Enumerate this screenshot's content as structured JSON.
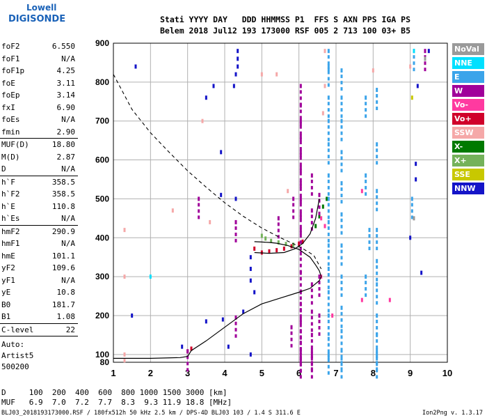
{
  "logo": {
    "line1": "Lowell",
    "line2": "DIGISONDE"
  },
  "header": {
    "row1": "Stati YYYY DAY   DDD HHMMSS P1  FFS S AXN PPS IGA PS",
    "row2": "Belem 2018 Jul12 193 173000 RSF 005 2 713 100 03+ B5"
  },
  "params": [
    {
      "label": "foF2",
      "value": "6.550"
    },
    {
      "label": "foF1",
      "value": "N/A"
    },
    {
      "label": "foF1p",
      "value": "4.25"
    },
    {
      "label": "foE",
      "value": "3.11"
    },
    {
      "label": "foEp",
      "value": "3.14"
    },
    {
      "label": "fxI",
      "value": "6.90"
    },
    {
      "label": "foEs",
      "value": "N/A"
    },
    {
      "label": "fmin",
      "value": "2.90"
    },
    {
      "sep": true
    },
    {
      "label": "MUF(D)",
      "value": "18.80"
    },
    {
      "label": "M(D)",
      "value": "2.87"
    },
    {
      "label": "D",
      "value": "N/A"
    },
    {
      "sep": true
    },
    {
      "label": "h`F",
      "value": "358.5"
    },
    {
      "label": "h`F2",
      "value": "358.5"
    },
    {
      "label": "h`E",
      "value": "110.8"
    },
    {
      "label": "h`Es",
      "value": "N/A"
    },
    {
      "sep": true
    },
    {
      "label": "hmF2",
      "value": "290.9"
    },
    {
      "label": "hmF1",
      "value": "N/A"
    },
    {
      "label": "hmE",
      "value": "101.1"
    },
    {
      "label": "yF2",
      "value": "109.6"
    },
    {
      "label": "yF1",
      "value": "N/A"
    },
    {
      "label": "yE",
      "value": "10.8"
    },
    {
      "label": "B0",
      "value": "181.7"
    },
    {
      "label": "B1",
      "value": "1.08"
    },
    {
      "sep": true
    },
    {
      "label": "C-level",
      "value": "22"
    },
    {
      "sep": true
    }
  ],
  "artist": {
    "line1": "Auto:",
    "line2": "Artist5",
    "line3": "500200"
  },
  "legend": [
    {
      "label": "NoVal",
      "color": "#9a9a9a"
    },
    {
      "label": "NNE",
      "color": "#00e0ff"
    },
    {
      "label": "E",
      "color": "#3ba4ea"
    },
    {
      "label": "W",
      "color": "#a0009a"
    },
    {
      "label": "Vo-",
      "color": "#ff3aa0"
    },
    {
      "label": "Vo+",
      "color": "#d0002a"
    },
    {
      "label": "SSW",
      "color": "#f5a8a8"
    },
    {
      "label": "X-",
      "color": "#007a00"
    },
    {
      "label": "X+",
      "color": "#74b25a"
    },
    {
      "label": "SSE",
      "color": "#c8c800"
    },
    {
      "label": "NNW",
      "color": "#1414c8"
    }
  ],
  "footer": {
    "line1": "D     100  200  400  600  800 1000 1500 3000 [km]",
    "line2": "MUF   6.9  7.0  7.2  7.7  8.3  9.3 11.9 18.8 [MHz]",
    "line3": "BLJ03_2018193173000.RSF / 180fx512h 50 kHz 2.5 km / DPS-4D BLJ03 103 / 1.4 S 311.6 E",
    "version": "Ion2Png v. 1.3.17"
  },
  "chart_data": {
    "type": "scatter",
    "xlim": [
      1,
      10
    ],
    "ylim": [
      80,
      900
    ],
    "x_ticks": [
      "1",
      "2",
      "3",
      "4",
      "5",
      "6",
      "7",
      "8",
      "9",
      "10"
    ],
    "y_ticks": [
      "80",
      "100",
      "200",
      "300",
      "400",
      "500",
      "600",
      "700",
      "800",
      "900"
    ],
    "grid": true,
    "traces": {
      "ordinary_O": [
        [
          1.0,
          90
        ],
        [
          2.0,
          90
        ],
        [
          2.8,
          92
        ],
        [
          3.0,
          95
        ],
        [
          3.1,
          110
        ],
        [
          3.5,
          135
        ],
        [
          4.0,
          170
        ],
        [
          4.5,
          205
        ],
        [
          5.0,
          230
        ],
        [
          5.5,
          245
        ],
        [
          6.0,
          260
        ],
        [
          6.3,
          270
        ],
        [
          6.55,
          290
        ],
        [
          6.6,
          300
        ],
        [
          6.55,
          315
        ],
        [
          6.45,
          330
        ],
        [
          6.3,
          350
        ],
        [
          6.0,
          370
        ],
        [
          5.7,
          380
        ],
        [
          5.4,
          386
        ],
        [
          5.2,
          388
        ],
        [
          5.0,
          389
        ],
        [
          4.8,
          390
        ]
      ],
      "ordinary_profile_upper": [
        [
          4.8,
          362
        ],
        [
          5.2,
          360
        ],
        [
          5.6,
          362
        ],
        [
          5.9,
          372
        ],
        [
          6.1,
          385
        ],
        [
          6.3,
          410
        ],
        [
          6.45,
          450
        ],
        [
          6.55,
          500
        ]
      ],
      "model_dashed": [
        [
          1.0,
          820
        ],
        [
          1.5,
          730
        ],
        [
          2.0,
          670
        ],
        [
          2.5,
          620
        ],
        [
          3.0,
          572
        ],
        [
          3.5,
          530
        ],
        [
          4.0,
          490
        ],
        [
          4.5,
          455
        ],
        [
          5.0,
          425
        ],
        [
          5.5,
          400
        ],
        [
          6.0,
          378
        ],
        [
          6.4,
          355
        ],
        [
          6.6,
          320
        ]
      ]
    },
    "echo_groups": [
      {
        "class": "Vo+",
        "points": [
          [
            5.2,
            365
          ],
          [
            5.4,
            368
          ],
          [
            5.6,
            372
          ],
          [
            5.8,
            378
          ],
          [
            6.0,
            385
          ],
          [
            6.1,
            390
          ],
          [
            4.8,
            372
          ],
          [
            5.0,
            362
          ],
          [
            3.0,
            108
          ],
          [
            3.1,
            115
          ]
        ]
      },
      {
        "class": "X+",
        "points": [
          [
            5.0,
            405
          ],
          [
            5.1,
            398
          ],
          [
            5.25,
            392
          ],
          [
            5.45,
            388
          ],
          [
            5.65,
            384
          ],
          [
            5.85,
            382
          ]
        ]
      },
      {
        "class": "X-",
        "points": [
          [
            6.45,
            430
          ],
          [
            6.55,
            455
          ],
          [
            6.65,
            480
          ],
          [
            6.75,
            500
          ]
        ]
      },
      {
        "class": "E",
        "points": [
          [
            6.8,
            880
          ],
          [
            6.8,
            840
          ],
          [
            6.8,
            760
          ],
          [
            6.8,
            700
          ],
          [
            6.8,
            640
          ],
          [
            6.8,
            560
          ],
          [
            6.8,
            500
          ],
          [
            6.8,
            440
          ],
          [
            6.8,
            380
          ],
          [
            6.8,
            320
          ],
          [
            6.8,
            260
          ],
          [
            6.8,
            200
          ],
          [
            6.8,
            140
          ],
          [
            6.8,
            100
          ],
          [
            7.15,
            830
          ],
          [
            7.15,
            760
          ],
          [
            7.15,
            700
          ],
          [
            7.15,
            620
          ],
          [
            7.15,
            540
          ],
          [
            7.15,
            460
          ],
          [
            7.15,
            380
          ],
          [
            7.15,
            300
          ],
          [
            7.15,
            220
          ],
          [
            7.15,
            160
          ],
          [
            7.15,
            110
          ],
          [
            7.15,
            90
          ],
          [
            8.1,
            780
          ],
          [
            8.1,
            640
          ],
          [
            8.1,
            520
          ],
          [
            8.1,
            420
          ],
          [
            8.1,
            340
          ],
          [
            8.1,
            280
          ],
          [
            8.1,
            200
          ],
          [
            8.1,
            150
          ],
          [
            8.1,
            110
          ],
          [
            8.1,
            90
          ],
          [
            7.8,
            760
          ],
          [
            7.8,
            560
          ],
          [
            7.8,
            300
          ],
          [
            7.9,
            420
          ],
          [
            9.1,
            880
          ],
          [
            9.05,
            500
          ]
        ]
      },
      {
        "class": "W",
        "points": [
          [
            6.05,
            790
          ],
          [
            6.05,
            740
          ],
          [
            6.05,
            700
          ],
          [
            6.05,
            660
          ],
          [
            6.05,
            620
          ],
          [
            6.05,
            580
          ],
          [
            6.05,
            540
          ],
          [
            6.05,
            500
          ],
          [
            6.05,
            460
          ],
          [
            6.05,
            420
          ],
          [
            6.05,
            360
          ],
          [
            6.05,
            310
          ],
          [
            6.05,
            260
          ],
          [
            6.05,
            230
          ],
          [
            6.05,
            190
          ],
          [
            6.05,
            160
          ],
          [
            6.05,
            130
          ],
          [
            6.05,
            105
          ],
          [
            6.05,
            90
          ],
          [
            6.35,
            560
          ],
          [
            6.35,
            470
          ],
          [
            6.35,
            280
          ],
          [
            6.35,
            210
          ],
          [
            6.35,
            150
          ],
          [
            6.35,
            110
          ],
          [
            6.35,
            90
          ],
          [
            6.55,
            510
          ],
          [
            6.55,
            300
          ],
          [
            6.55,
            200
          ],
          [
            5.85,
            500
          ],
          [
            5.8,
            170
          ],
          [
            5.45,
            450
          ],
          [
            4.3,
            440
          ],
          [
            4.3,
            195
          ],
          [
            3.3,
            500
          ],
          [
            3.0,
            108
          ],
          [
            9.4,
            880
          ]
        ]
      },
      {
        "class": "Vo-",
        "points": [
          [
            6.6,
            450
          ],
          [
            6.7,
            430
          ],
          [
            6.6,
            300
          ],
          [
            7.7,
            520
          ],
          [
            7.7,
            240
          ],
          [
            8.45,
            240
          ],
          [
            6.9,
            200
          ]
        ]
      },
      {
        "class": "NNW",
        "points": [
          [
            4.35,
            880
          ],
          [
            4.35,
            860
          ],
          [
            4.35,
            840
          ],
          [
            4.3,
            820
          ],
          [
            4.25,
            790
          ],
          [
            3.7,
            790
          ],
          [
            3.5,
            760
          ],
          [
            3.9,
            620
          ],
          [
            4.3,
            500
          ],
          [
            3.9,
            510
          ],
          [
            4.7,
            350
          ],
          [
            4.7,
            320
          ],
          [
            4.7,
            290
          ],
          [
            4.8,
            260
          ],
          [
            4.5,
            210
          ],
          [
            3.95,
            190
          ],
          [
            3.5,
            185
          ],
          [
            4.1,
            120
          ],
          [
            2.85,
            120
          ],
          [
            4.7,
            100
          ],
          [
            1.6,
            840
          ],
          [
            1.5,
            200
          ],
          [
            9.15,
            590
          ],
          [
            9.15,
            550
          ],
          [
            9.2,
            790
          ],
          [
            9.5,
            880
          ],
          [
            9.0,
            400
          ],
          [
            9.3,
            310
          ]
        ]
      },
      {
        "class": "SSW",
        "points": [
          [
            5.4,
            820
          ],
          [
            6.7,
            880
          ],
          [
            6.7,
            790
          ],
          [
            6.65,
            720
          ],
          [
            5.0,
            820
          ],
          [
            8.0,
            830
          ],
          [
            5.7,
            520
          ],
          [
            3.4,
            700
          ],
          [
            2.6,
            470
          ],
          [
            1.3,
            420
          ],
          [
            1.3,
            300
          ],
          [
            1.3,
            100
          ],
          [
            1.3,
            85
          ],
          [
            3.6,
            440
          ],
          [
            9.0,
            840
          ]
        ]
      },
      {
        "class": "NNE",
        "points": [
          [
            2.0,
            300
          ],
          [
            9.1,
            880
          ]
        ]
      },
      {
        "class": "NoVal",
        "points": [
          [
            9.4,
            860
          ],
          [
            9.1,
            450
          ]
        ]
      },
      {
        "class": "SSE",
        "points": [
          [
            9.05,
            760
          ]
        ]
      }
    ]
  }
}
